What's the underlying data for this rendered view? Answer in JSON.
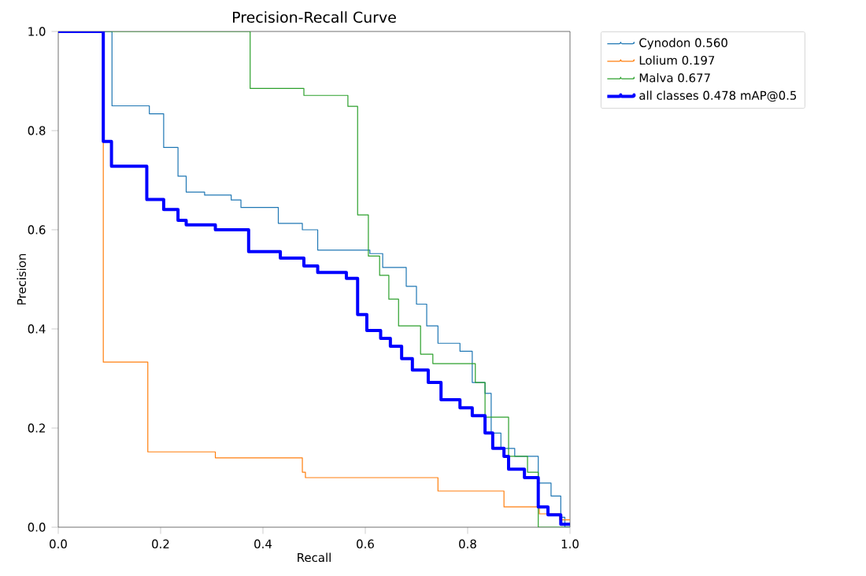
{
  "chart_data": {
    "type": "step",
    "title": "Precision-Recall Curve",
    "xlabel": "Recall",
    "ylabel": "Precision",
    "xlim": [
      0,
      1
    ],
    "ylim": [
      0,
      1
    ],
    "xticks": [
      {
        "value": 0,
        "label": "0.0"
      },
      {
        "value": 0.2,
        "label": "0.2"
      },
      {
        "value": 0.4,
        "label": "0.4"
      },
      {
        "value": 0.6,
        "label": "0.6"
      },
      {
        "value": 0.8,
        "label": "0.8"
      },
      {
        "value": 1,
        "label": "1.0"
      }
    ],
    "yticks": [
      {
        "value": 0,
        "label": "0.0"
      },
      {
        "value": 0.2,
        "label": "0.2"
      },
      {
        "value": 0.4,
        "label": "0.4"
      },
      {
        "value": 0.6,
        "label": "0.6"
      },
      {
        "value": 0.8,
        "label": "0.8"
      },
      {
        "value": 1,
        "label": "1.0"
      }
    ],
    "legend": "right",
    "grid": false,
    "series": [
      {
        "name": "Cynodon 0.560",
        "color": "#1f77b4",
        "x": [
          0,
          0.105,
          0.178,
          0.206,
          0.234,
          0.25,
          0.286,
          0.338,
          0.357,
          0.43,
          0.477,
          0.507,
          0.609,
          0.634,
          0.68,
          0.7,
          0.72,
          0.742,
          0.785,
          0.809,
          0.834,
          0.846,
          0.865,
          0.892,
          0.938,
          0.963,
          0.982,
          0.99,
          1.0
        ],
        "values": [
          1,
          0.85,
          0.834,
          0.766,
          0.708,
          0.676,
          0.67,
          0.66,
          0.645,
          0.613,
          0.6,
          0.559,
          0.552,
          0.524,
          0.486,
          0.45,
          0.406,
          0.371,
          0.355,
          0.292,
          0.27,
          0.19,
          0.159,
          0.143,
          0.089,
          0.063,
          0.02,
          0,
          0
        ]
      },
      {
        "name": "Lolium 0.197",
        "color": "#ff7f0e",
        "x": [
          0,
          0.088,
          0.175,
          0.307,
          0.477,
          0.483,
          0.742,
          0.871,
          0.94,
          0.98,
          1.0
        ],
        "values": [
          1,
          0.333,
          0.152,
          0.14,
          0.111,
          0.1,
          0.073,
          0.041,
          0.027,
          0.015,
          0.015
        ]
      },
      {
        "name": "Malva 0.677",
        "color": "#2ca02c",
        "x": [
          0,
          0.375,
          0.48,
          0.566,
          0.585,
          0.606,
          0.628,
          0.646,
          0.665,
          0.708,
          0.732,
          0.815,
          0.834,
          0.88,
          0.917,
          0.938,
          1.0
        ],
        "values": [
          1,
          0.885,
          0.871,
          0.849,
          0.63,
          0.547,
          0.508,
          0.46,
          0.406,
          0.349,
          0.33,
          0.292,
          0.222,
          0.143,
          0.111,
          0,
          0
        ]
      },
      {
        "name": "all classes 0.478 mAP@0.5",
        "color": "#0000ff",
        "x": [
          0,
          0.088,
          0.104,
          0.173,
          0.206,
          0.234,
          0.25,
          0.307,
          0.372,
          0.434,
          0.48,
          0.507,
          0.563,
          0.585,
          0.603,
          0.63,
          0.649,
          0.671,
          0.692,
          0.723,
          0.748,
          0.785,
          0.809,
          0.834,
          0.849,
          0.871,
          0.88,
          0.911,
          0.938,
          0.957,
          0.982,
          1.0
        ],
        "values": [
          1,
          0.778,
          0.728,
          0.661,
          0.641,
          0.619,
          0.61,
          0.6,
          0.556,
          0.543,
          0.527,
          0.514,
          0.502,
          0.429,
          0.397,
          0.381,
          0.365,
          0.34,
          0.317,
          0.292,
          0.257,
          0.241,
          0.225,
          0.19,
          0.159,
          0.143,
          0.117,
          0.1,
          0.041,
          0.025,
          0.006,
          0.006
        ]
      }
    ]
  }
}
